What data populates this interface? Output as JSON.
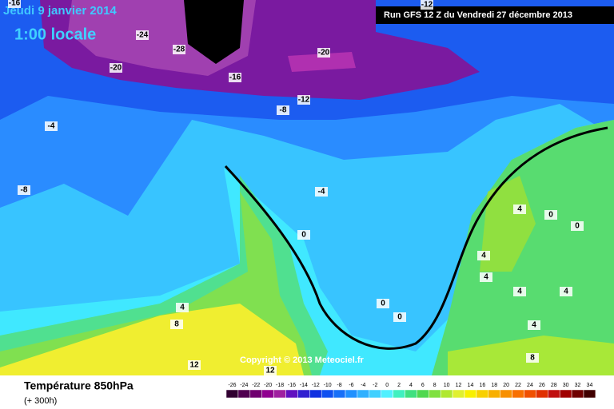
{
  "header": {
    "date": "Jeudi 9 janvier 2014",
    "time": "1:00 locale",
    "run": "Run GFS 12 Z du Vendredi 27 décembre 2013",
    "copyright": "Copyright © 2013 Meteociel.fr"
  },
  "footer": {
    "title": "Température 850hPa",
    "lead": "(+ 300h)"
  },
  "contour_labels": [
    -16,
    -12,
    -24,
    -28,
    -20,
    -20,
    -16,
    -12,
    -8,
    -4,
    -8,
    -4,
    0,
    4,
    0,
    0,
    4,
    4,
    0,
    0,
    4,
    4,
    4,
    8,
    4,
    8,
    12,
    12
  ],
  "legend": {
    "levels": [
      -26,
      -24,
      -22,
      -20,
      -18,
      -16,
      -14,
      -12,
      -10,
      -8,
      -6,
      -4,
      -2,
      0,
      2,
      4,
      6,
      8,
      10,
      12,
      14,
      16,
      18,
      20,
      22,
      24,
      26,
      28,
      30,
      32,
      34
    ],
    "colors": [
      "#300030",
      "#500050",
      "#700070",
      "#900090",
      "#a020a0",
      "#6010c0",
      "#3020d0",
      "#1030e0",
      "#1050f0",
      "#1870f8",
      "#2090ff",
      "#30b0ff",
      "#40d0ff",
      "#50f0ff",
      "#40f0c0",
      "#40e080",
      "#50d850",
      "#80e040",
      "#b0e830",
      "#e0f030",
      "#f8f000",
      "#f8d000",
      "#f8b000",
      "#f89000",
      "#f87000",
      "#f05000",
      "#e03000",
      "#c01010",
      "#a00000",
      "#700000",
      "#400000"
    ]
  }
}
